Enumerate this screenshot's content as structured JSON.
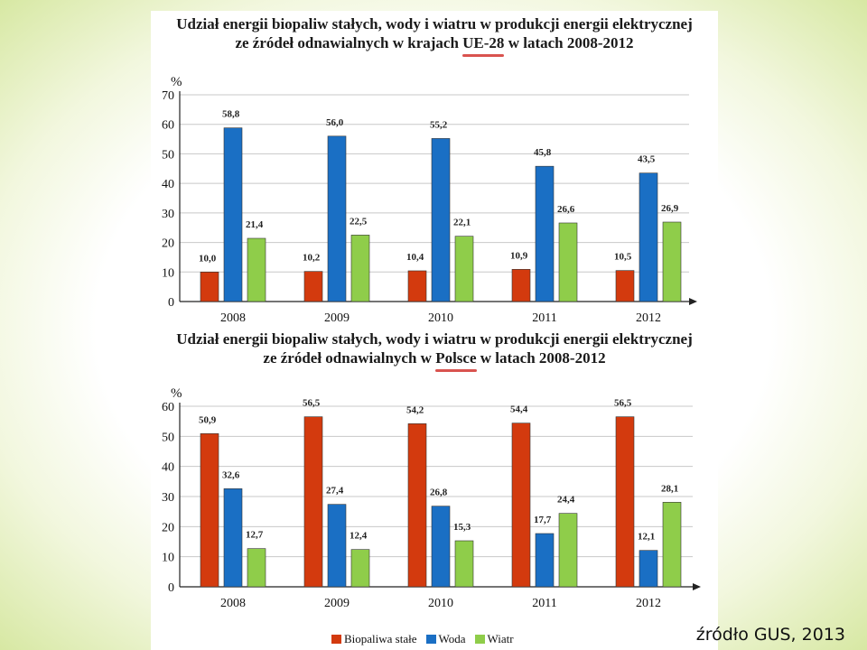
{
  "colors": {
    "biopaliwa": "#d33a0e",
    "woda": "#1a6fc4",
    "wiatr": "#8fcd4a"
  },
  "legend": [
    "Biopaliwa stałe",
    "Woda",
    "Wiatr"
  ],
  "source": "źródło GUS, 2013",
  "chart_data": [
    {
      "type": "bar",
      "title": {
        "line1": "Udział energii biopaliw stałych, wody i wiatru w produkcji energii elektrycznej",
        "line2_pre": "ze źródeł odnawialnych w krajach ",
        "line2_hl": "UE-28",
        "line2_post": " w latach 2008-2012"
      },
      "ylabel": "%",
      "ylim": [
        0,
        70
      ],
      "yticks": [
        "0",
        "10",
        "20",
        "30",
        "40",
        "50",
        "60",
        "70"
      ],
      "categories": [
        "2008",
        "2009",
        "2010",
        "2011",
        "2012"
      ],
      "series": [
        {
          "name": "Biopaliwa stałe",
          "values": [
            10.0,
            10.2,
            10.4,
            10.9,
            10.5
          ],
          "labels": [
            "10,0",
            "10,2",
            "10,4",
            "10,9",
            "10,5"
          ]
        },
        {
          "name": "Woda",
          "values": [
            58.8,
            56.0,
            55.2,
            45.8,
            43.5
          ],
          "labels": [
            "58,8",
            "56,0",
            "55,2",
            "45,8",
            "43,5"
          ]
        },
        {
          "name": "Wiatr",
          "values": [
            21.4,
            22.5,
            22.1,
            26.6,
            26.9
          ],
          "labels": [
            "21,4",
            "22,5",
            "22,1",
            "26,6",
            "26,9"
          ]
        }
      ]
    },
    {
      "type": "bar",
      "title": {
        "line1": "Udział energii biopaliw stałych, wody i wiatru w produkcji energii elektrycznej",
        "line2_pre": "ze źródeł odnawialnych w ",
        "line2_hl": "Polsce",
        "line2_post": " w latach 2008-2012"
      },
      "ylabel": "%",
      "ylim": [
        0,
        60
      ],
      "yticks": [
        "0",
        "10",
        "20",
        "30",
        "40",
        "50",
        "60"
      ],
      "categories": [
        "2008",
        "2009",
        "2010",
        "2011",
        "2012"
      ],
      "series": [
        {
          "name": "Biopaliwa stałe",
          "values": [
            50.9,
            56.5,
            54.2,
            54.4,
            56.5
          ],
          "labels": [
            "50,9",
            "56,5",
            "54,2",
            "54,4",
            "56,5"
          ]
        },
        {
          "name": "Woda",
          "values": [
            32.6,
            27.4,
            26.8,
            17.7,
            12.1
          ],
          "labels": [
            "32,6",
            "27,4",
            "26,8",
            "17,7",
            "12,1"
          ]
        },
        {
          "name": "Wiatr",
          "values": [
            12.7,
            12.4,
            15.3,
            24.4,
            28.1
          ],
          "labels": [
            "12,7",
            "12,4",
            "15,3",
            "24,4",
            "28,1"
          ]
        }
      ]
    }
  ]
}
